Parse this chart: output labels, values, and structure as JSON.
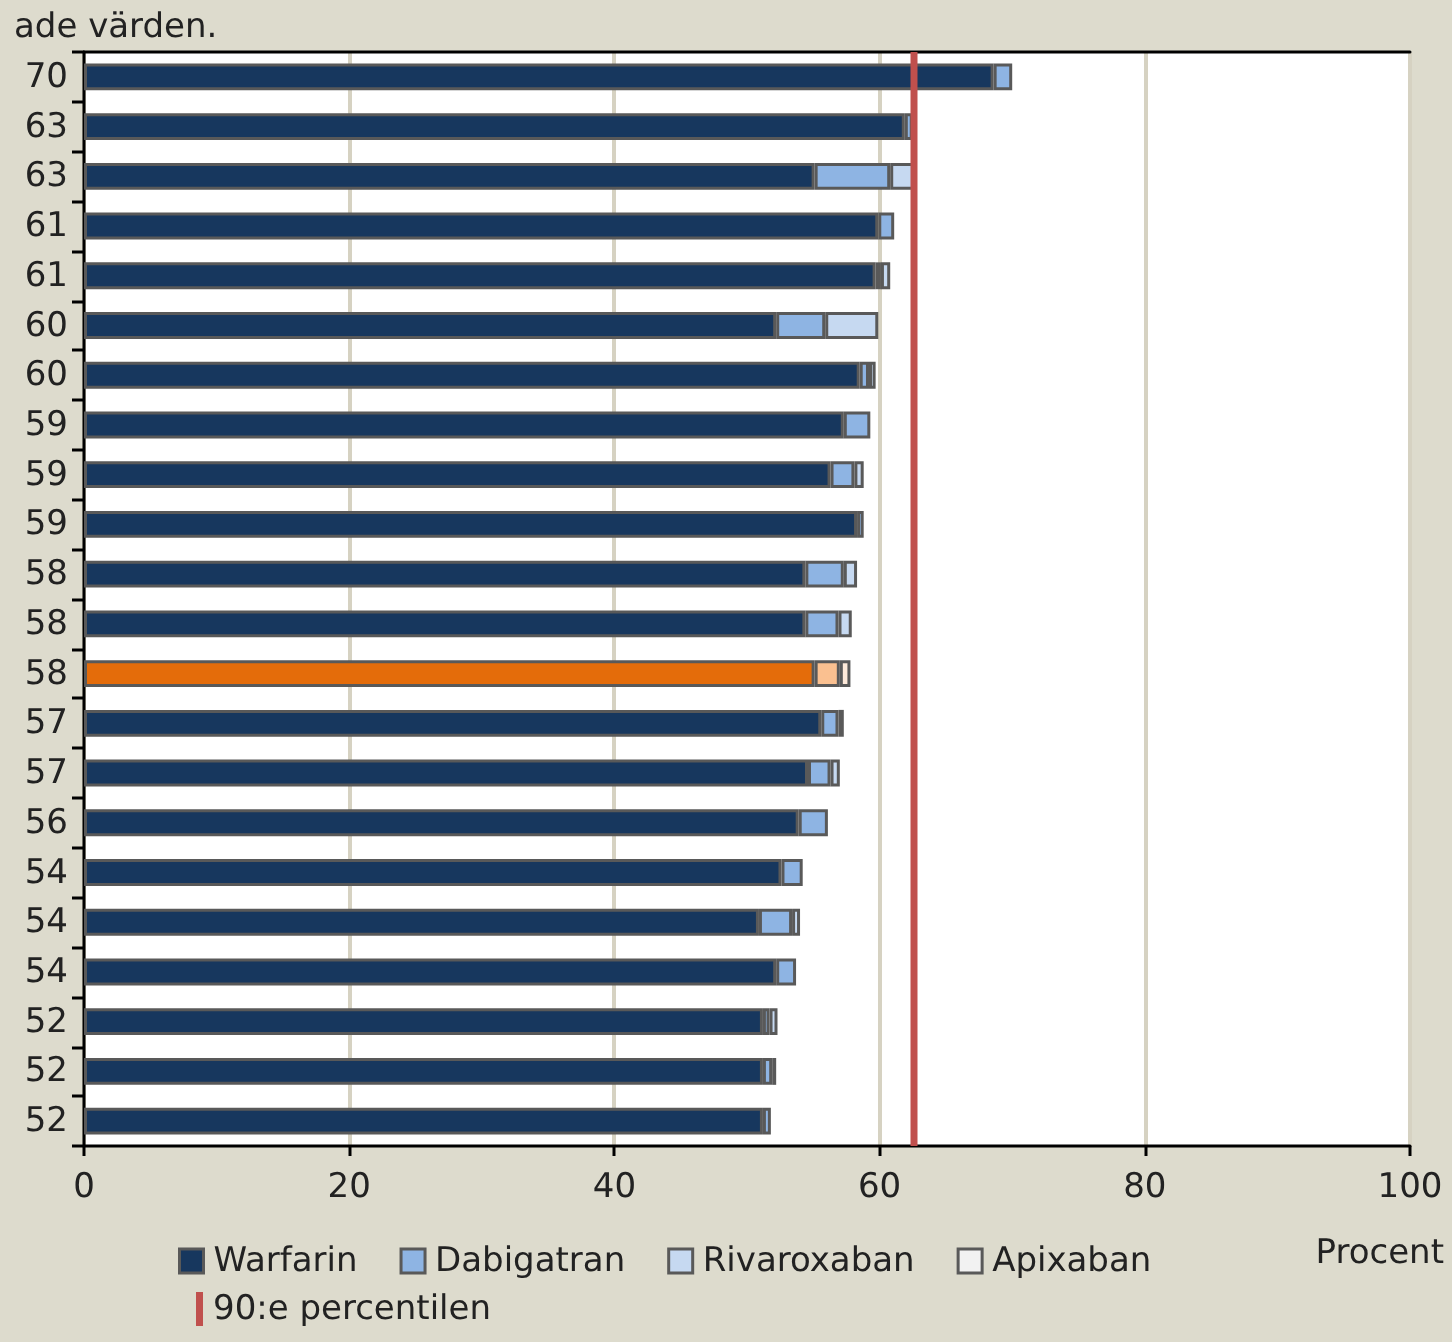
{
  "chart_data": {
    "type": "bar",
    "orientation": "horizontal",
    "stacked": true,
    "title": "ade värden.",
    "xlabel": "Procent",
    "categories": [
      "70",
      "63",
      "63",
      "61",
      "61",
      "60",
      "60",
      "59",
      "59",
      "59",
      "58",
      "58",
      "58",
      "57",
      "57",
      "56",
      "54",
      "54",
      "54",
      "52",
      "52",
      "52"
    ],
    "series": [
      {
        "name": "Warfarin",
        "color": "#17375e",
        "colors": [
          "#17375e",
          "#17375e",
          "#17375e",
          "#17375e",
          "#17375e",
          "#17375e",
          "#17375e",
          "#17375e",
          "#17375e",
          "#17375e",
          "#17375e",
          "#17375e",
          "#e46c0a",
          "#17375e",
          "#17375e",
          "#17375e",
          "#17375e",
          "#17375e",
          "#17375e",
          "#17375e",
          "#17375e",
          "#17375e"
        ],
        "values": [
          68.6,
          61.9,
          55.1,
          59.9,
          59.7,
          52.2,
          58.5,
          57.3,
          56.3,
          58.3,
          54.4,
          54.4,
          55.1,
          55.6,
          54.6,
          53.9,
          52.6,
          50.9,
          52.2,
          51.2,
          51.2,
          51.2
        ]
      },
      {
        "name": "Dabigatran",
        "color": "#8eb4e3",
        "colors": [
          "#8eb4e3",
          "#8eb4e3",
          "#8eb4e3",
          "#8eb4e3",
          "#8eb4e3",
          "#8eb4e3",
          "#8eb4e3",
          "#8eb4e3",
          "#8eb4e3",
          "#8eb4e3",
          "#8eb4e3",
          "#8eb4e3",
          "#fac090",
          "#8eb4e3",
          "#8eb4e3",
          "#8eb4e3",
          "#8eb4e3",
          "#8eb4e3",
          "#8eb4e3",
          "#8eb4e3",
          "#8eb4e3",
          "#8eb4e3"
        ],
        "values": [
          1.4,
          0.6,
          5.7,
          1.2,
          0.4,
          3.7,
          0.7,
          2.0,
          1.8,
          0.5,
          2.9,
          2.5,
          1.9,
          1.3,
          1.7,
          2.2,
          1.6,
          2.5,
          1.5,
          0.5,
          0.7,
          0.6
        ]
      },
      {
        "name": "Rivaroxaban",
        "color": "#c6d9f1",
        "colors": [
          "#c6d9f1",
          "#c6d9f1",
          "#c6d9f1",
          "#c6d9f1",
          "#c6d9f1",
          "#c6d9f1",
          "#c6d9f1",
          "#c6d9f1",
          "#c6d9f1",
          "#c6d9f1",
          "#c6d9f1",
          "#c6d9f1",
          "#fde9d9",
          "#c6d9f1",
          "#c6d9f1",
          "#c6d9f1",
          "#c6d9f1",
          "#c6d9f1",
          "#c6d9f1",
          "#c6d9f1",
          "#c6d9f1",
          "#c6d9f1"
        ],
        "values": [
          null,
          null,
          1.8,
          null,
          0.7,
          4.0,
          0.5,
          null,
          0.7,
          null,
          1.0,
          1.0,
          0.8,
          0.4,
          0.7,
          null,
          null,
          0.6,
          null,
          0.6,
          0.3,
          null
        ]
      },
      {
        "name": "Apixaban",
        "color": "#f2f2f2",
        "values": [
          null,
          null,
          null,
          null,
          null,
          null,
          null,
          null,
          null,
          null,
          null,
          null,
          null,
          null,
          null,
          null,
          null,
          null,
          null,
          null,
          null,
          null
        ]
      }
    ],
    "xlim": [
      0,
      100
    ],
    "xticks": [
      0,
      20,
      40,
      60,
      80,
      100
    ],
    "grid": "x",
    "legend": "bottom",
    "ref_lines": [
      {
        "axis": "x",
        "value": 62.6,
        "label": "90:e percentilen",
        "color": "#c0504d"
      }
    ]
  }
}
